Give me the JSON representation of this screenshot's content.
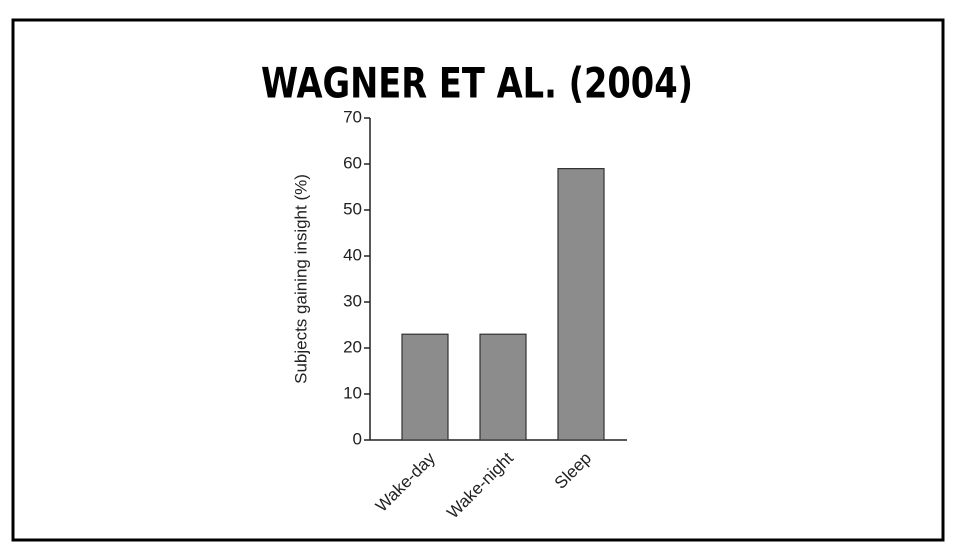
{
  "chart_data": {
    "type": "bar",
    "title": "WAGNER ET AL. (2004)",
    "y_label": "Subjects gaining insight (%)",
    "categories": [
      "Wake-day",
      "Wake-night",
      "Sleep"
    ],
    "values": [
      23,
      23,
      59
    ],
    "color": "#8c8c8c",
    "ylim": [
      0,
      70
    ],
    "yticks": [
      0,
      10,
      20,
      30,
      40,
      50,
      60,
      70
    ],
    "grid": false
  }
}
